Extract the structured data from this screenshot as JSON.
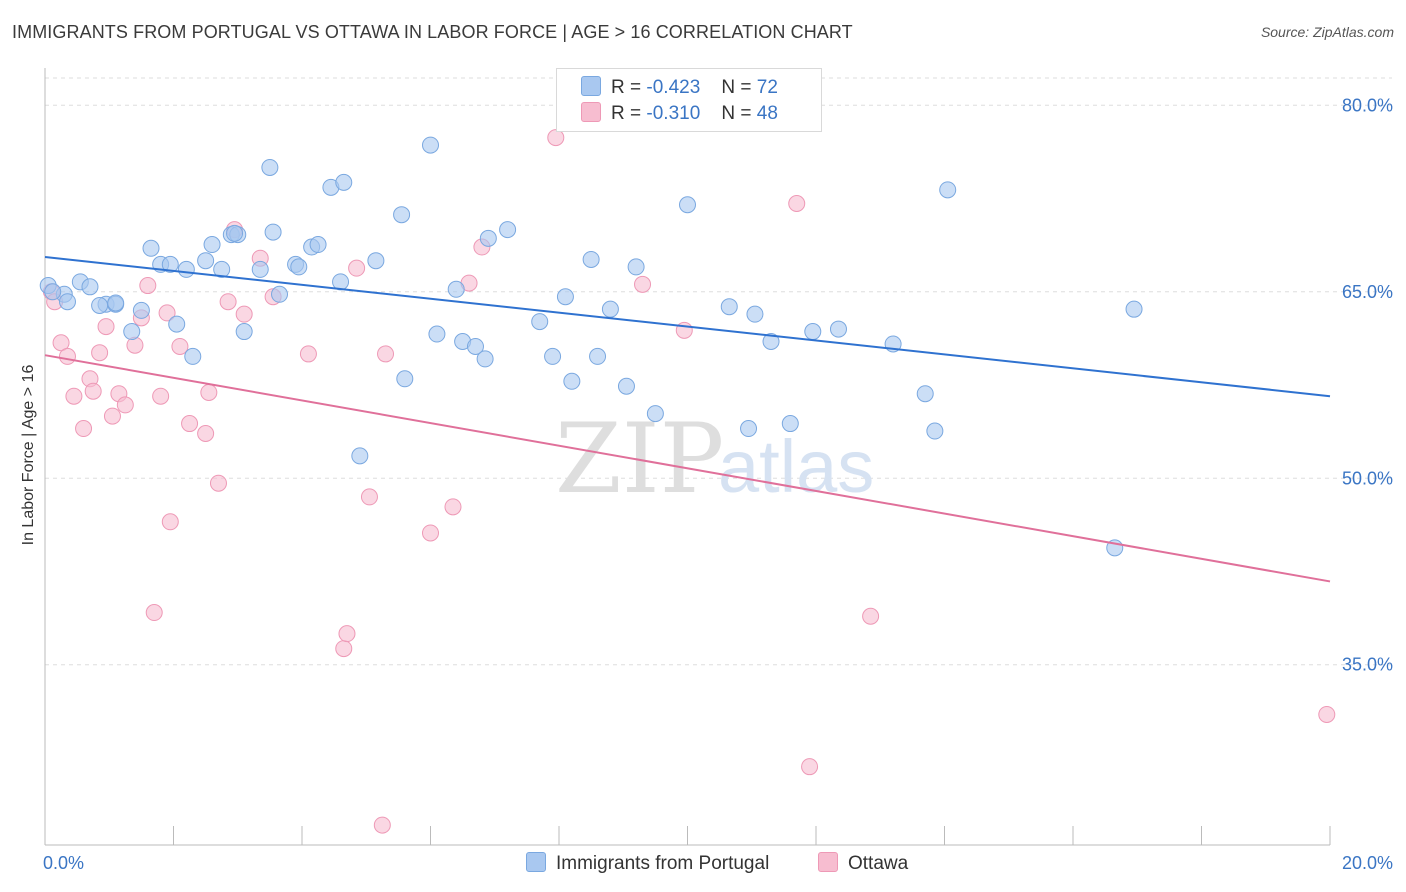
{
  "title": "IMMIGRANTS FROM PORTUGAL VS OTTAWA IN LABOR FORCE | AGE > 16 CORRELATION CHART",
  "source": "Source: ZipAtlas.com",
  "watermark": {
    "zip": "ZIP",
    "atlas": "atlas"
  },
  "legend": {
    "rows": [
      {
        "r_label": "R =",
        "r_value": "-0.423",
        "n_label": "N =",
        "n_value": "72",
        "color": "#a9c8f0",
        "border": "#7aa8e0"
      },
      {
        "r_label": "R =",
        "r_value": "-0.310",
        "n_label": "N =",
        "n_value": "48",
        "color": "#f7bdd0",
        "border": "#ee99b6"
      }
    ]
  },
  "bottom_legend": [
    {
      "label": "Immigrants from Portugal",
      "color": "#a9c8f0",
      "border": "#7aa8e0"
    },
    {
      "label": "Ottawa",
      "color": "#f7bdd0",
      "border": "#ee99b6"
    }
  ],
  "colors": {
    "blue_fill": "#a9c8f0",
    "blue_stroke": "#7aa8e0",
    "blue_line": "#2f72d0",
    "pink_fill": "#f7bdd0",
    "pink_stroke": "#ee99b6",
    "pink_line": "#e0709a",
    "tick_label": "#3a75c4",
    "grid": "#dddddd",
    "axis": "#bbbbbb"
  },
  "chart_data": {
    "type": "scatter",
    "title": "IMMIGRANTS FROM PORTUGAL VS OTTAWA IN LABOR FORCE | AGE > 16 CORRELATION CHART",
    "xlabel": "",
    "ylabel": "In Labor Force | Age > 16",
    "xlim": [
      0,
      20
    ],
    "ylim": [
      20.5,
      83.0
    ],
    "x_tick_labels": [
      "0.0%",
      "20.0%"
    ],
    "y_ticks": [
      35,
      50,
      65,
      80
    ],
    "y_tick_labels": [
      "35.0%",
      "50.0%",
      "65.0%",
      "80.0%"
    ],
    "grid": true,
    "legend_position": "top-center",
    "series": [
      {
        "name": "Immigrants from Portugal",
        "r": -0.423,
        "n": 72,
        "trend": {
          "x": [
            0,
            20
          ],
          "y": [
            67.8,
            56.6
          ]
        },
        "points": [
          [
            0.05,
            65.5
          ],
          [
            0.3,
            64.8
          ],
          [
            0.35,
            64.2
          ],
          [
            0.55,
            65.8
          ],
          [
            0.7,
            65.4
          ],
          [
            0.95,
            64.0
          ],
          [
            1.1,
            64.0
          ],
          [
            1.35,
            61.8
          ],
          [
            1.5,
            63.5
          ],
          [
            1.65,
            68.5
          ],
          [
            1.8,
            67.2
          ],
          [
            1.95,
            67.2
          ],
          [
            2.05,
            62.4
          ],
          [
            2.2,
            66.8
          ],
          [
            2.3,
            59.8
          ],
          [
            2.5,
            67.5
          ],
          [
            2.6,
            68.8
          ],
          [
            2.75,
            66.8
          ],
          [
            2.9,
            69.6
          ],
          [
            3.0,
            69.6
          ],
          [
            3.1,
            61.8
          ],
          [
            3.35,
            66.8
          ],
          [
            3.5,
            75.0
          ],
          [
            3.55,
            69.8
          ],
          [
            3.65,
            64.8
          ],
          [
            3.9,
            67.2
          ],
          [
            3.95,
            67.0
          ],
          [
            4.15,
            68.6
          ],
          [
            4.25,
            68.8
          ],
          [
            4.45,
            73.4
          ],
          [
            4.6,
            65.8
          ],
          [
            4.65,
            73.8
          ],
          [
            4.9,
            51.8
          ],
          [
            5.15,
            67.5
          ],
          [
            5.55,
            71.2
          ],
          [
            5.6,
            58.0
          ],
          [
            6.0,
            76.8
          ],
          [
            6.1,
            61.6
          ],
          [
            6.4,
            65.2
          ],
          [
            6.5,
            61.0
          ],
          [
            6.7,
            60.6
          ],
          [
            6.85,
            59.6
          ],
          [
            6.9,
            69.3
          ],
          [
            7.2,
            70.0
          ],
          [
            7.7,
            62.6
          ],
          [
            7.9,
            59.8
          ],
          [
            8.1,
            64.6
          ],
          [
            8.2,
            57.8
          ],
          [
            8.5,
            67.6
          ],
          [
            8.6,
            59.8
          ],
          [
            8.8,
            63.6
          ],
          [
            9.05,
            57.4
          ],
          [
            9.2,
            67.0
          ],
          [
            9.5,
            55.2
          ],
          [
            10.0,
            72.0
          ],
          [
            10.65,
            63.8
          ],
          [
            10.95,
            54.0
          ],
          [
            11.05,
            63.2
          ],
          [
            11.3,
            61.0
          ],
          [
            11.6,
            54.4
          ],
          [
            11.95,
            61.8
          ],
          [
            12.35,
            62.0
          ],
          [
            13.2,
            60.8
          ],
          [
            13.7,
            56.8
          ],
          [
            13.85,
            53.8
          ],
          [
            14.05,
            73.2
          ],
          [
            16.65,
            44.4
          ],
          [
            16.95,
            63.6
          ],
          [
            0.12,
            65.0
          ],
          [
            0.85,
            63.9
          ],
          [
            1.1,
            64.1
          ],
          [
            2.95,
            69.7
          ]
        ]
      },
      {
        "name": "Ottawa",
        "r": -0.31,
        "n": 48,
        "trend": {
          "x": [
            0,
            20
          ],
          "y": [
            59.9,
            41.7
          ]
        },
        "points": [
          [
            0.1,
            65.0
          ],
          [
            0.15,
            64.2
          ],
          [
            0.25,
            60.9
          ],
          [
            0.35,
            59.8
          ],
          [
            0.45,
            56.6
          ],
          [
            0.6,
            54.0
          ],
          [
            0.7,
            58.0
          ],
          [
            0.75,
            57.0
          ],
          [
            0.85,
            60.1
          ],
          [
            0.95,
            62.2
          ],
          [
            1.05,
            55.0
          ],
          [
            1.15,
            56.8
          ],
          [
            1.25,
            55.9
          ],
          [
            1.4,
            60.7
          ],
          [
            1.5,
            62.9
          ],
          [
            1.6,
            65.5
          ],
          [
            1.7,
            39.2
          ],
          [
            1.8,
            56.6
          ],
          [
            1.9,
            63.3
          ],
          [
            1.95,
            46.5
          ],
          [
            2.1,
            60.6
          ],
          [
            2.25,
            54.4
          ],
          [
            2.5,
            53.6
          ],
          [
            2.55,
            56.9
          ],
          [
            2.7,
            49.6
          ],
          [
            2.85,
            64.2
          ],
          [
            2.95,
            70.0
          ],
          [
            3.1,
            63.2
          ],
          [
            3.35,
            67.7
          ],
          [
            3.55,
            64.6
          ],
          [
            4.1,
            60.0
          ],
          [
            4.65,
            36.3
          ],
          [
            4.7,
            37.5
          ],
          [
            4.85,
            66.9
          ],
          [
            5.05,
            48.5
          ],
          [
            5.25,
            22.1
          ],
          [
            5.3,
            60.0
          ],
          [
            6.0,
            45.6
          ],
          [
            6.35,
            47.7
          ],
          [
            6.6,
            65.7
          ],
          [
            6.8,
            68.6
          ],
          [
            7.95,
            77.4
          ],
          [
            9.3,
            65.6
          ],
          [
            9.95,
            61.9
          ],
          [
            11.7,
            72.1
          ],
          [
            11.9,
            26.8
          ],
          [
            12.85,
            38.9
          ],
          [
            19.95,
            31.0
          ]
        ]
      }
    ]
  }
}
